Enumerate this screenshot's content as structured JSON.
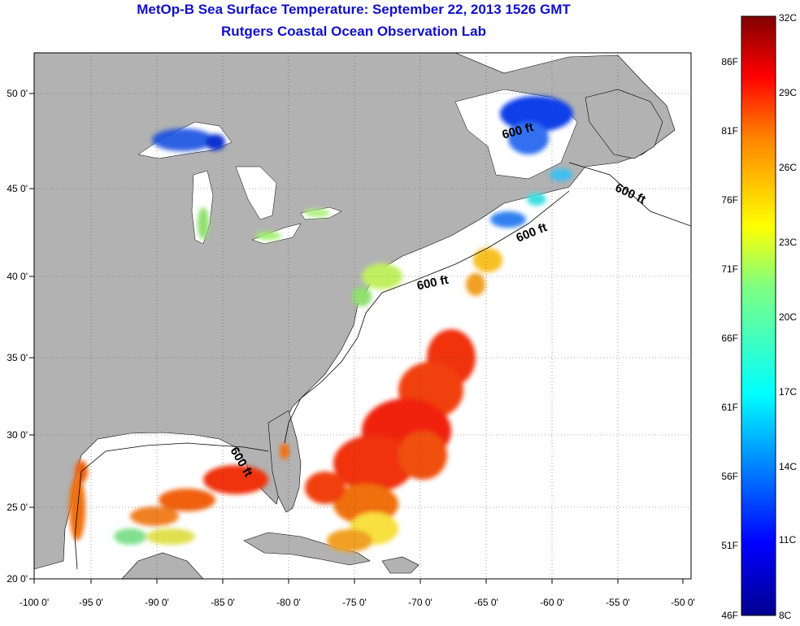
{
  "title_line1": "MetOp-B Sea Surface Temperature:  September 22, 2013 1526 GMT",
  "title_line2": "Rutgers Coastal Ocean Observation Lab",
  "x_ticks": [
    "-100 0'",
    "-95 0'",
    "-90 0'",
    "-85 0'",
    "-80 0'",
    "-75 0'",
    "-70 0'",
    "-65 0'",
    "-60 0'",
    "-55 0'",
    "-50 0'"
  ],
  "y_ticks": [
    "50 0'",
    "45 0'",
    "40 0'",
    "35 0'",
    "30 0'",
    "25 0'",
    "20 0'"
  ],
  "contour_label": "600 ft",
  "colorbar": {
    "celsius": [
      "32C",
      "29C",
      "26C",
      "23C",
      "20C",
      "17C",
      "14C",
      "11C",
      "8C"
    ],
    "fahrenheit": [
      "86F",
      "81F",
      "76F",
      "71F",
      "66F",
      "61F",
      "56F",
      "51F",
      "46F"
    ],
    "colors": [
      "#00008f",
      "#0000ff",
      "#0080ff",
      "#00ffff",
      "#80ff80",
      "#ffff00",
      "#ff8000",
      "#ff0000",
      "#800000"
    ]
  },
  "land_color": "#b2b2b2",
  "title_color": "#1010c8"
}
